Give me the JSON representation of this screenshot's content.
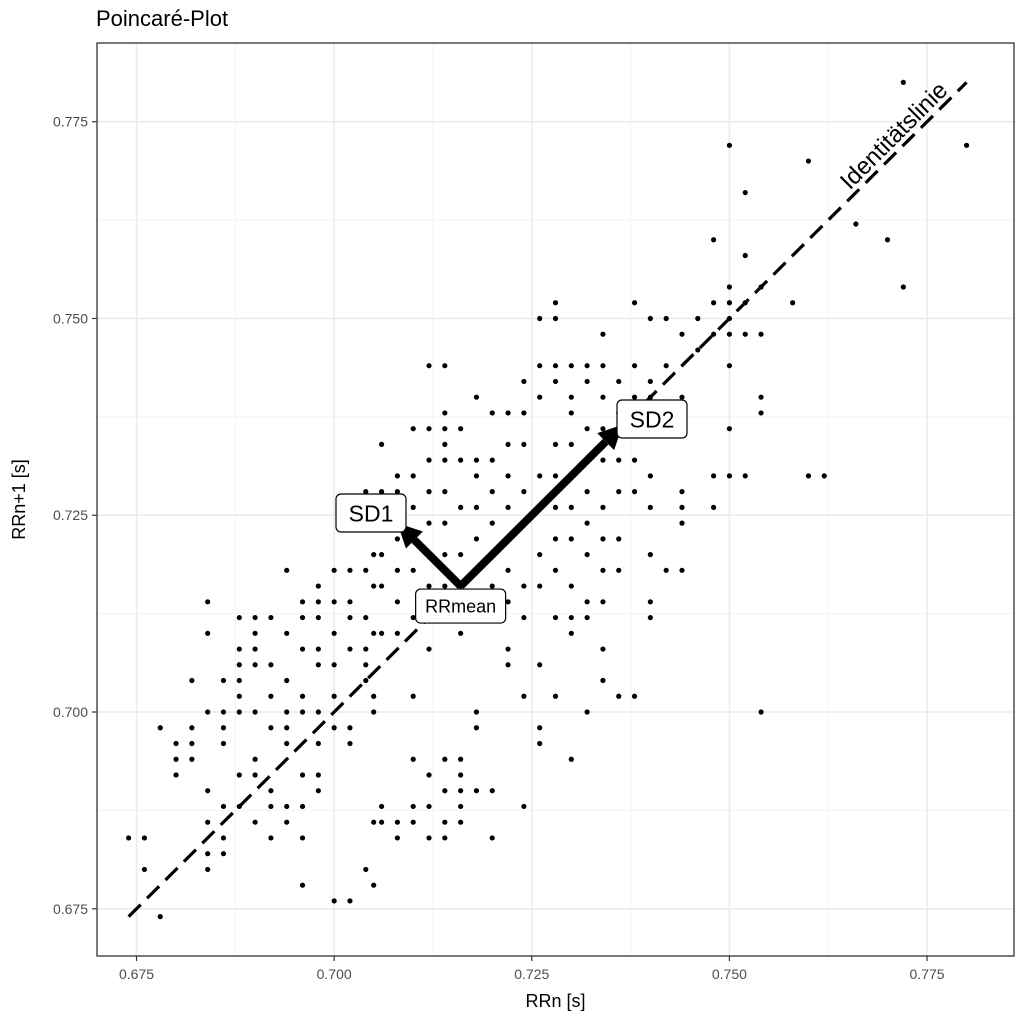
{
  "chart_data": {
    "type": "scatter",
    "title": "Poincaré-Plot",
    "xlabel": "RRn [s]",
    "ylabel": "RRn+1 [s]",
    "xlim": [
      0.67,
      0.786
    ],
    "ylim": [
      0.669,
      0.785
    ],
    "x_ticks": [
      0.675,
      0.7,
      0.725,
      0.75,
      0.775
    ],
    "y_ticks": [
      0.675,
      0.7,
      0.725,
      0.75,
      0.775
    ],
    "x_tick_labels": [
      "0.675",
      "0.700",
      "0.725",
      "0.750",
      "0.775"
    ],
    "y_tick_labels": [
      "0.675",
      "0.700",
      "0.725",
      "0.750",
      "0.775"
    ],
    "grid": true,
    "points": [
      [
        0.674,
        0.684
      ],
      [
        0.676,
        0.684
      ],
      [
        0.676,
        0.68
      ],
      [
        0.678,
        0.698
      ],
      [
        0.678,
        0.674
      ],
      [
        0.68,
        0.696
      ],
      [
        0.68,
        0.694
      ],
      [
        0.68,
        0.692
      ],
      [
        0.682,
        0.704
      ],
      [
        0.682,
        0.698
      ],
      [
        0.682,
        0.696
      ],
      [
        0.682,
        0.694
      ],
      [
        0.684,
        0.714
      ],
      [
        0.684,
        0.71
      ],
      [
        0.684,
        0.7
      ],
      [
        0.684,
        0.69
      ],
      [
        0.684,
        0.686
      ],
      [
        0.684,
        0.682
      ],
      [
        0.684,
        0.68
      ],
      [
        0.686,
        0.704
      ],
      [
        0.686,
        0.7
      ],
      [
        0.686,
        0.698
      ],
      [
        0.686,
        0.696
      ],
      [
        0.686,
        0.688
      ],
      [
        0.686,
        0.684
      ],
      [
        0.686,
        0.682
      ],
      [
        0.688,
        0.712
      ],
      [
        0.688,
        0.708
      ],
      [
        0.688,
        0.706
      ],
      [
        0.688,
        0.704
      ],
      [
        0.688,
        0.702
      ],
      [
        0.688,
        0.7
      ],
      [
        0.688,
        0.692
      ],
      [
        0.688,
        0.688
      ],
      [
        0.69,
        0.712
      ],
      [
        0.69,
        0.71
      ],
      [
        0.69,
        0.708
      ],
      [
        0.69,
        0.706
      ],
      [
        0.69,
        0.7
      ],
      [
        0.69,
        0.694
      ],
      [
        0.69,
        0.692
      ],
      [
        0.69,
        0.686
      ],
      [
        0.692,
        0.712
      ],
      [
        0.692,
        0.706
      ],
      [
        0.692,
        0.702
      ],
      [
        0.692,
        0.698
      ],
      [
        0.692,
        0.69
      ],
      [
        0.692,
        0.688
      ],
      [
        0.692,
        0.684
      ],
      [
        0.694,
        0.718
      ],
      [
        0.694,
        0.71
      ],
      [
        0.694,
        0.704
      ],
      [
        0.694,
        0.7
      ],
      [
        0.694,
        0.698
      ],
      [
        0.694,
        0.696
      ],
      [
        0.694,
        0.688
      ],
      [
        0.694,
        0.686
      ],
      [
        0.696,
        0.714
      ],
      [
        0.696,
        0.712
      ],
      [
        0.696,
        0.708
      ],
      [
        0.696,
        0.702
      ],
      [
        0.696,
        0.7
      ],
      [
        0.696,
        0.692
      ],
      [
        0.696,
        0.688
      ],
      [
        0.696,
        0.684
      ],
      [
        0.696,
        0.678
      ],
      [
        0.698,
        0.716
      ],
      [
        0.698,
        0.714
      ],
      [
        0.698,
        0.712
      ],
      [
        0.698,
        0.708
      ],
      [
        0.698,
        0.706
      ],
      [
        0.698,
        0.7
      ],
      [
        0.698,
        0.696
      ],
      [
        0.698,
        0.692
      ],
      [
        0.698,
        0.69
      ],
      [
        0.7,
        0.718
      ],
      [
        0.7,
        0.714
      ],
      [
        0.7,
        0.71
      ],
      [
        0.7,
        0.706
      ],
      [
        0.7,
        0.702
      ],
      [
        0.7,
        0.698
      ],
      [
        0.7,
        0.676
      ],
      [
        0.702,
        0.718
      ],
      [
        0.702,
        0.714
      ],
      [
        0.702,
        0.712
      ],
      [
        0.702,
        0.708
      ],
      [
        0.702,
        0.698
      ],
      [
        0.702,
        0.696
      ],
      [
        0.702,
        0.676
      ],
      [
        0.704,
        0.728
      ],
      [
        0.704,
        0.718
      ],
      [
        0.704,
        0.712
      ],
      [
        0.704,
        0.708
      ],
      [
        0.704,
        0.706
      ],
      [
        0.704,
        0.704
      ],
      [
        0.704,
        0.68
      ],
      [
        0.705,
        0.726
      ],
      [
        0.705,
        0.72
      ],
      [
        0.705,
        0.716
      ],
      [
        0.705,
        0.71
      ],
      [
        0.705,
        0.702
      ],
      [
        0.705,
        0.7
      ],
      [
        0.705,
        0.686
      ],
      [
        0.705,
        0.678
      ],
      [
        0.706,
        0.734
      ],
      [
        0.706,
        0.728
      ],
      [
        0.706,
        0.724
      ],
      [
        0.706,
        0.72
      ],
      [
        0.706,
        0.716
      ],
      [
        0.706,
        0.71
      ],
      [
        0.706,
        0.688
      ],
      [
        0.706,
        0.686
      ],
      [
        0.708,
        0.73
      ],
      [
        0.708,
        0.728
      ],
      [
        0.708,
        0.724
      ],
      [
        0.708,
        0.722
      ],
      [
        0.708,
        0.718
      ],
      [
        0.708,
        0.714
      ],
      [
        0.708,
        0.71
      ],
      [
        0.708,
        0.686
      ],
      [
        0.708,
        0.684
      ],
      [
        0.71,
        0.736
      ],
      [
        0.71,
        0.73
      ],
      [
        0.71,
        0.726
      ],
      [
        0.71,
        0.722
      ],
      [
        0.71,
        0.718
      ],
      [
        0.71,
        0.712
      ],
      [
        0.71,
        0.702
      ],
      [
        0.71,
        0.694
      ],
      [
        0.71,
        0.688
      ],
      [
        0.71,
        0.686
      ],
      [
        0.712,
        0.744
      ],
      [
        0.712,
        0.736
      ],
      [
        0.712,
        0.732
      ],
      [
        0.712,
        0.728
      ],
      [
        0.712,
        0.724
      ],
      [
        0.712,
        0.72
      ],
      [
        0.712,
        0.716
      ],
      [
        0.712,
        0.708
      ],
      [
        0.712,
        0.692
      ],
      [
        0.712,
        0.688
      ],
      [
        0.712,
        0.684
      ],
      [
        0.714,
        0.744
      ],
      [
        0.714,
        0.738
      ],
      [
        0.714,
        0.736
      ],
      [
        0.714,
        0.734
      ],
      [
        0.714,
        0.732
      ],
      [
        0.714,
        0.728
      ],
      [
        0.714,
        0.724
      ],
      [
        0.714,
        0.72
      ],
      [
        0.714,
        0.716
      ],
      [
        0.714,
        0.694
      ],
      [
        0.714,
        0.69
      ],
      [
        0.714,
        0.686
      ],
      [
        0.714,
        0.684
      ],
      [
        0.716,
        0.736
      ],
      [
        0.716,
        0.732
      ],
      [
        0.716,
        0.726
      ],
      [
        0.716,
        0.72
      ],
      [
        0.716,
        0.716
      ],
      [
        0.716,
        0.71
      ],
      [
        0.716,
        0.694
      ],
      [
        0.716,
        0.692
      ],
      [
        0.716,
        0.69
      ],
      [
        0.716,
        0.688
      ],
      [
        0.716,
        0.686
      ],
      [
        0.718,
        0.74
      ],
      [
        0.718,
        0.732
      ],
      [
        0.718,
        0.73
      ],
      [
        0.718,
        0.726
      ],
      [
        0.718,
        0.722
      ],
      [
        0.718,
        0.718
      ],
      [
        0.718,
        0.714
      ],
      [
        0.718,
        0.7
      ],
      [
        0.718,
        0.698
      ],
      [
        0.718,
        0.69
      ],
      [
        0.72,
        0.738
      ],
      [
        0.72,
        0.732
      ],
      [
        0.72,
        0.728
      ],
      [
        0.72,
        0.724
      ],
      [
        0.72,
        0.72
      ],
      [
        0.72,
        0.716
      ],
      [
        0.72,
        0.712
      ],
      [
        0.72,
        0.69
      ],
      [
        0.72,
        0.684
      ],
      [
        0.722,
        0.738
      ],
      [
        0.722,
        0.734
      ],
      [
        0.722,
        0.73
      ],
      [
        0.722,
        0.726
      ],
      [
        0.722,
        0.722
      ],
      [
        0.722,
        0.718
      ],
      [
        0.722,
        0.714
      ],
      [
        0.722,
        0.708
      ],
      [
        0.722,
        0.706
      ],
      [
        0.724,
        0.742
      ],
      [
        0.724,
        0.738
      ],
      [
        0.724,
        0.734
      ],
      [
        0.724,
        0.728
      ],
      [
        0.724,
        0.724
      ],
      [
        0.724,
        0.716
      ],
      [
        0.724,
        0.712
      ],
      [
        0.724,
        0.702
      ],
      [
        0.724,
        0.688
      ],
      [
        0.726,
        0.75
      ],
      [
        0.726,
        0.744
      ],
      [
        0.726,
        0.74
      ],
      [
        0.726,
        0.73
      ],
      [
        0.726,
        0.726
      ],
      [
        0.726,
        0.72
      ],
      [
        0.726,
        0.716
      ],
      [
        0.726,
        0.706
      ],
      [
        0.726,
        0.698
      ],
      [
        0.726,
        0.696
      ],
      [
        0.728,
        0.752
      ],
      [
        0.728,
        0.75
      ],
      [
        0.728,
        0.744
      ],
      [
        0.728,
        0.742
      ],
      [
        0.728,
        0.734
      ],
      [
        0.728,
        0.73
      ],
      [
        0.728,
        0.726
      ],
      [
        0.728,
        0.722
      ],
      [
        0.728,
        0.718
      ],
      [
        0.728,
        0.712
      ],
      [
        0.728,
        0.702
      ],
      [
        0.73,
        0.744
      ],
      [
        0.73,
        0.74
      ],
      [
        0.73,
        0.738
      ],
      [
        0.73,
        0.734
      ],
      [
        0.73,
        0.73
      ],
      [
        0.73,
        0.726
      ],
      [
        0.73,
        0.722
      ],
      [
        0.73,
        0.716
      ],
      [
        0.73,
        0.712
      ],
      [
        0.73,
        0.71
      ],
      [
        0.73,
        0.694
      ],
      [
        0.732,
        0.744
      ],
      [
        0.732,
        0.742
      ],
      [
        0.732,
        0.736
      ],
      [
        0.732,
        0.732
      ],
      [
        0.732,
        0.728
      ],
      [
        0.732,
        0.724
      ],
      [
        0.732,
        0.72
      ],
      [
        0.732,
        0.714
      ],
      [
        0.732,
        0.712
      ],
      [
        0.732,
        0.7
      ],
      [
        0.734,
        0.748
      ],
      [
        0.734,
        0.744
      ],
      [
        0.734,
        0.74
      ],
      [
        0.734,
        0.736
      ],
      [
        0.734,
        0.732
      ],
      [
        0.734,
        0.726
      ],
      [
        0.734,
        0.722
      ],
      [
        0.734,
        0.718
      ],
      [
        0.734,
        0.714
      ],
      [
        0.734,
        0.708
      ],
      [
        0.734,
        0.704
      ],
      [
        0.736,
        0.742
      ],
      [
        0.736,
        0.738
      ],
      [
        0.736,
        0.732
      ],
      [
        0.736,
        0.728
      ],
      [
        0.736,
        0.722
      ],
      [
        0.736,
        0.718
      ],
      [
        0.736,
        0.702
      ],
      [
        0.738,
        0.752
      ],
      [
        0.738,
        0.744
      ],
      [
        0.738,
        0.74
      ],
      [
        0.738,
        0.736
      ],
      [
        0.738,
        0.732
      ],
      [
        0.738,
        0.728
      ],
      [
        0.738,
        0.702
      ],
      [
        0.74,
        0.75
      ],
      [
        0.74,
        0.742
      ],
      [
        0.74,
        0.74
      ],
      [
        0.74,
        0.736
      ],
      [
        0.74,
        0.73
      ],
      [
        0.74,
        0.726
      ],
      [
        0.74,
        0.72
      ],
      [
        0.74,
        0.714
      ],
      [
        0.74,
        0.712
      ],
      [
        0.742,
        0.75
      ],
      [
        0.742,
        0.744
      ],
      [
        0.742,
        0.738
      ],
      [
        0.742,
        0.718
      ],
      [
        0.744,
        0.748
      ],
      [
        0.744,
        0.74
      ],
      [
        0.744,
        0.736
      ],
      [
        0.744,
        0.728
      ],
      [
        0.744,
        0.726
      ],
      [
        0.744,
        0.724
      ],
      [
        0.744,
        0.718
      ],
      [
        0.746,
        0.75
      ],
      [
        0.746,
        0.746
      ],
      [
        0.748,
        0.76
      ],
      [
        0.748,
        0.752
      ],
      [
        0.748,
        0.748
      ],
      [
        0.748,
        0.73
      ],
      [
        0.748,
        0.726
      ],
      [
        0.75,
        0.772
      ],
      [
        0.75,
        0.754
      ],
      [
        0.75,
        0.752
      ],
      [
        0.75,
        0.75
      ],
      [
        0.75,
        0.748
      ],
      [
        0.75,
        0.744
      ],
      [
        0.75,
        0.736
      ],
      [
        0.75,
        0.73
      ],
      [
        0.752,
        0.766
      ],
      [
        0.752,
        0.758
      ],
      [
        0.752,
        0.752
      ],
      [
        0.752,
        0.748
      ],
      [
        0.752,
        0.73
      ],
      [
        0.754,
        0.754
      ],
      [
        0.754,
        0.748
      ],
      [
        0.754,
        0.74
      ],
      [
        0.754,
        0.738
      ],
      [
        0.754,
        0.7
      ],
      [
        0.758,
        0.752
      ],
      [
        0.76,
        0.77
      ],
      [
        0.76,
        0.73
      ],
      [
        0.762,
        0.73
      ],
      [
        0.766,
        0.762
      ],
      [
        0.77,
        0.76
      ],
      [
        0.772,
        0.78
      ],
      [
        0.772,
        0.754
      ],
      [
        0.78,
        0.772
      ]
    ],
    "identity_line": {
      "label": "Identitätslinie",
      "from": [
        0.674,
        0.674
      ],
      "to": [
        0.78,
        0.78
      ],
      "style": "dashed"
    },
    "annotations": {
      "rrmean": {
        "label": "RRmean",
        "x": 0.716,
        "y": 0.716
      },
      "sd1": {
        "label": "SD1",
        "from": [
          0.716,
          0.716
        ],
        "to": [
          0.708,
          0.724
        ]
      },
      "sd2": {
        "label": "SD2",
        "from": [
          0.716,
          0.716
        ],
        "to": [
          0.7365,
          0.7365
        ]
      }
    },
    "colors": {
      "points": "#000000",
      "grid": "#ebebeb",
      "panel_border": "#333333",
      "tick_text": "#4d4d4d"
    }
  }
}
